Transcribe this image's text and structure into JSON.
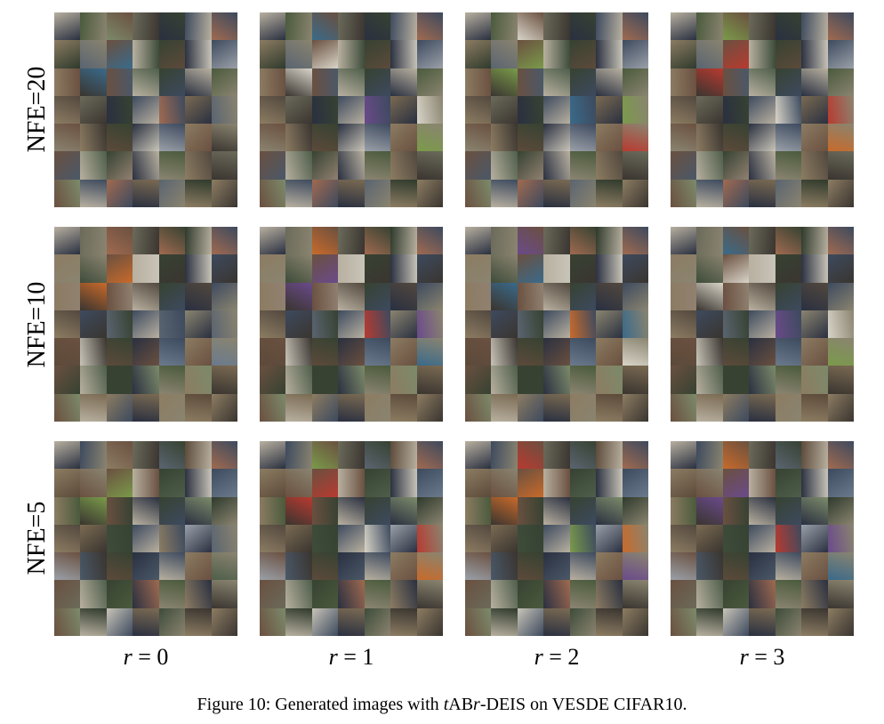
{
  "figure": {
    "row_labels": [
      "NFE=20",
      "NFE=10",
      "NFE=5"
    ],
    "col_labels": [
      {
        "var": "r",
        "eq": " = ",
        "val": "0"
      },
      {
        "var": "r",
        "eq": " = ",
        "val": "1"
      },
      {
        "var": "r",
        "eq": " = ",
        "val": "2"
      },
      {
        "var": "r",
        "eq": " = ",
        "val": "3"
      }
    ],
    "caption": {
      "prefix": "Figure 10: Generated images with ",
      "t": "t",
      "ab": "AB",
      "r": "r",
      "suffix": "-DEIS on VESDE CIFAR10."
    }
  }
}
